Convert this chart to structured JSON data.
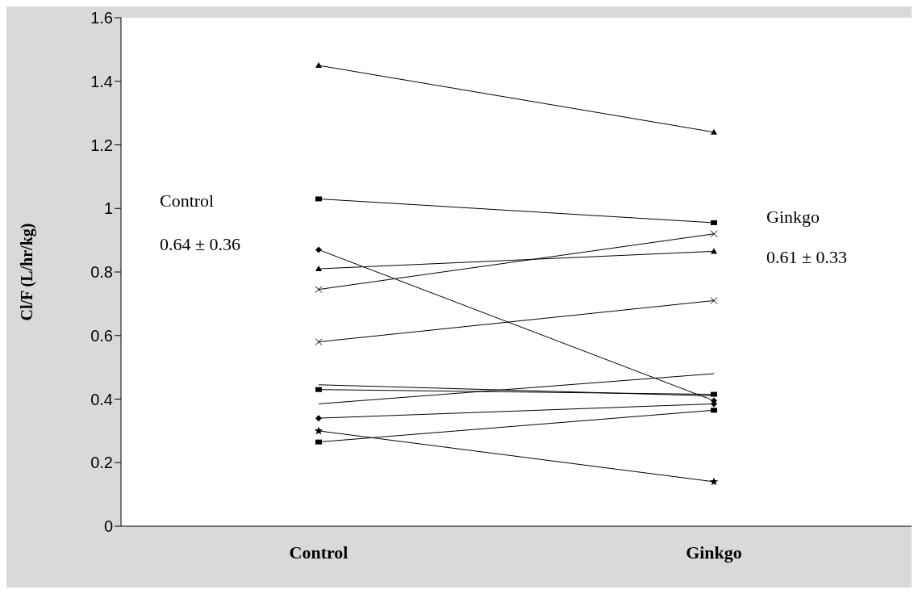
{
  "chart_data": {
    "type": "line",
    "categories": [
      "Control",
      "Ginkgo"
    ],
    "ylabel": "Cl/F (L/hr/kg)",
    "ylim": [
      0,
      1.6
    ],
    "yticks": [
      0,
      0.2,
      0.4,
      0.6,
      0.8,
      1,
      1.2,
      1.4,
      1.6
    ],
    "grid": false,
    "legend": false,
    "annotations": [
      "Control",
      "0.64 ± 0.36",
      "Ginkgo",
      "0.61 ± 0.33"
    ],
    "series": [
      {
        "color": "#000000",
        "marker": "triangle",
        "values": [
          1.45,
          1.24
        ]
      },
      {
        "color": "#000000",
        "marker": "square",
        "values": [
          1.03,
          0.955
        ]
      },
      {
        "color": "#000000",
        "marker": "diamond",
        "values": [
          0.87,
          0.395
        ]
      },
      {
        "color": "#000000",
        "marker": "triangle",
        "values": [
          0.81,
          0.865
        ]
      },
      {
        "color": "#000000",
        "marker": "cross",
        "values": [
          0.745,
          0.92
        ]
      },
      {
        "color": "#000000",
        "marker": "cross",
        "values": [
          0.58,
          0.71
        ]
      },
      {
        "color": "#000000",
        "marker": "none",
        "values": [
          0.445,
          0.41
        ]
      },
      {
        "color": "#000000",
        "marker": "square",
        "values": [
          0.43,
          0.415
        ]
      },
      {
        "color": "#000000",
        "marker": "none",
        "values": [
          0.385,
          0.48
        ]
      },
      {
        "color": "#000000",
        "marker": "diamond",
        "values": [
          0.34,
          0.385
        ]
      },
      {
        "color": "#000000",
        "marker": "star",
        "values": [
          0.3,
          0.14
        ]
      },
      {
        "color": "#000000",
        "marker": "square",
        "values": [
          0.265,
          0.365
        ]
      }
    ]
  }
}
